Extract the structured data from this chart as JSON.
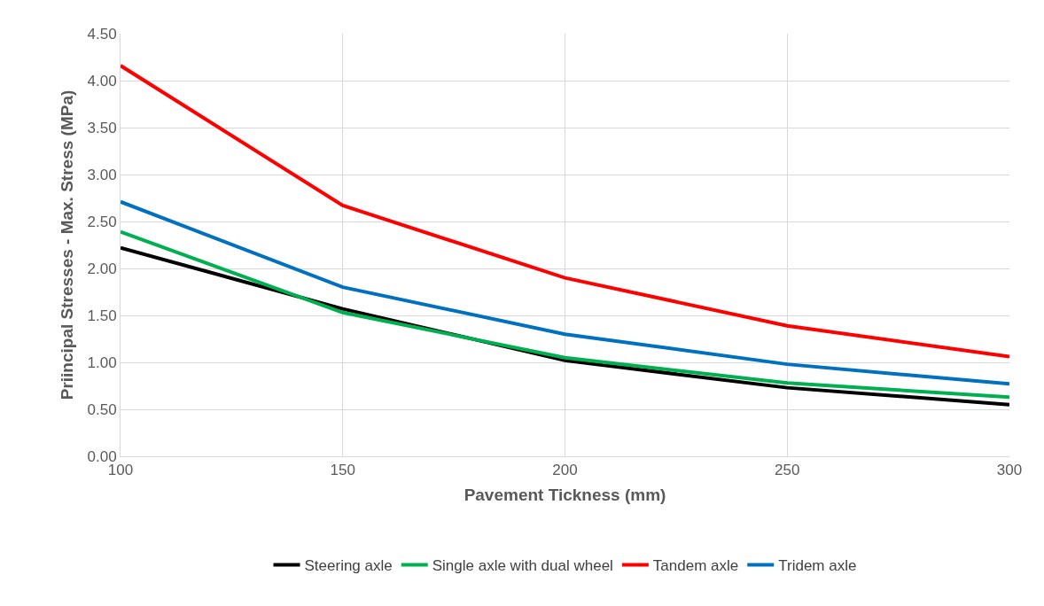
{
  "chart_data": {
    "type": "line",
    "xlabel": "Pavement Tickness (mm)",
    "ylabel": "Priincipal Stresses - Max. Stress (MPa)",
    "x": [
      100,
      150,
      200,
      250,
      300
    ],
    "series": [
      {
        "name": "Steering axle",
        "color": "#000000",
        "values": [
          2.22,
          1.57,
          1.02,
          0.73,
          0.55
        ]
      },
      {
        "name": "Single axle with dual wheel",
        "color": "#00b050",
        "values": [
          2.39,
          1.53,
          1.05,
          0.78,
          0.63
        ]
      },
      {
        "name": "Tandem axle",
        "color": "#ff0000",
        "values": [
          4.16,
          2.67,
          1.9,
          1.39,
          1.06
        ]
      },
      {
        "name": "Tridem axle",
        "color": "#0070c0",
        "values": [
          2.71,
          1.8,
          1.3,
          0.98,
          0.77
        ]
      }
    ],
    "xlim": [
      100,
      300
    ],
    "xticks": [
      100,
      150,
      200,
      250,
      300
    ],
    "ylim": [
      0,
      4.5
    ],
    "yticks": [
      {
        "value": 0,
        "label": "0.00"
      },
      {
        "value": 0.5,
        "label": "0.50"
      },
      {
        "value": 1,
        "label": "1.00"
      },
      {
        "value": 1.5,
        "label": "1.50"
      },
      {
        "value": 2,
        "label": "2.00"
      },
      {
        "value": 2.5,
        "label": "2.50"
      },
      {
        "value": 3,
        "label": "3.00"
      },
      {
        "value": 3.5,
        "label": "3.50"
      },
      {
        "value": 4,
        "label": "4.00"
      },
      {
        "value": 4.5,
        "label": "4.50"
      }
    ],
    "grid": true,
    "legend": "bottom",
    "marker": "none",
    "line_style": "solid"
  }
}
